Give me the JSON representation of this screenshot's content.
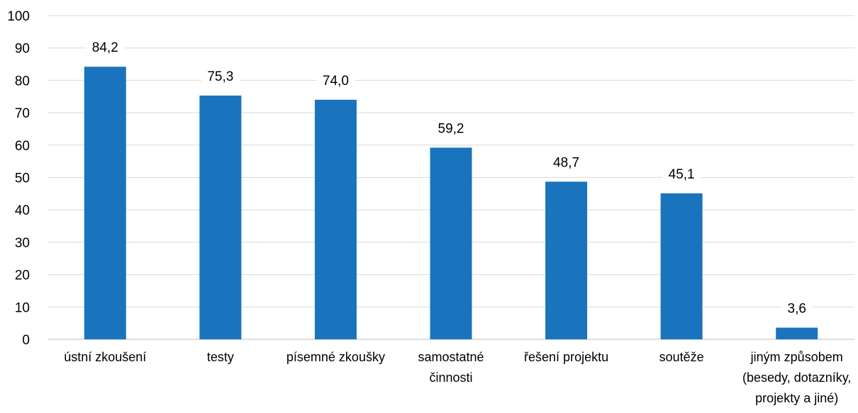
{
  "chart_data": {
    "type": "bar",
    "title": "",
    "xlabel": "",
    "ylabel": "",
    "ylim": [
      0,
      100
    ],
    "yticks": [
      "0",
      "10",
      "20",
      "30",
      "40",
      "50",
      "60",
      "70",
      "80",
      "90",
      "100"
    ],
    "grid": true,
    "legend": "none",
    "bar_color": "#1a74bd",
    "categories": [
      [
        "ústní zkoušení"
      ],
      [
        "testy"
      ],
      [
        "písemné zkoušky"
      ],
      [
        "samostatné",
        "činnosti"
      ],
      [
        "řešení projektu"
      ],
      [
        "soutěže"
      ],
      [
        "jiným způsobem",
        "(besedy, dotazníky,",
        "projekty a jiné)"
      ]
    ],
    "values": [
      84.2,
      75.3,
      74.0,
      59.2,
      48.7,
      45.1,
      3.6
    ],
    "value_labels": [
      "84,2",
      "75,3",
      "74,0",
      "59,2",
      "48,7",
      "45,1",
      "3,6"
    ]
  }
}
